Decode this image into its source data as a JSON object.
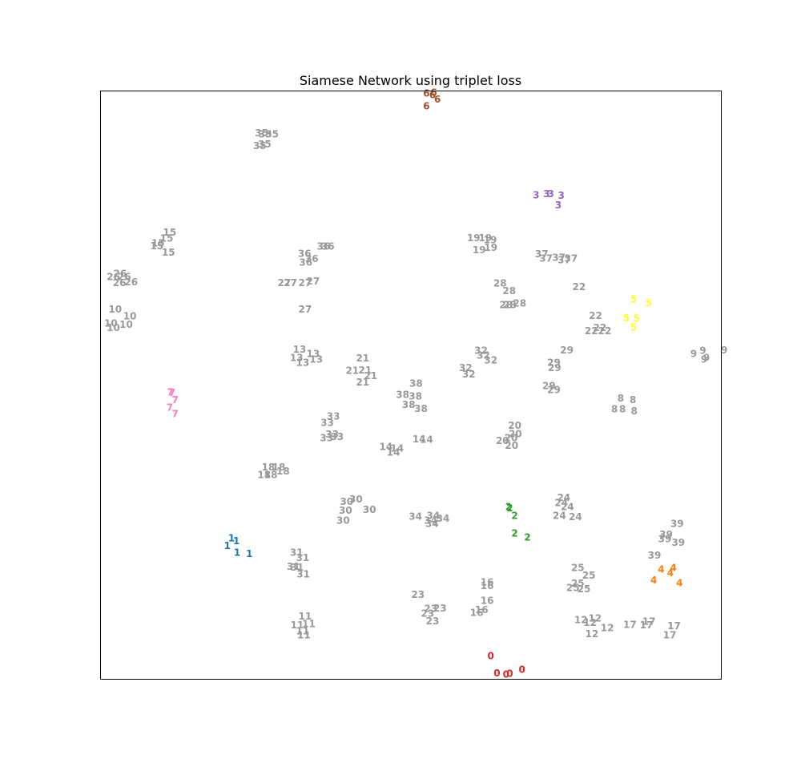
{
  "chart_data": {
    "type": "scatter",
    "title": "Siamese Network using triplet loss",
    "xlabel": "",
    "ylabel": "",
    "xlim": [
      0,
      100
    ],
    "ylim": [
      0,
      100
    ],
    "grid": false,
    "axis_ticks": false,
    "colors": {
      "0": "#d62728",
      "1": "#1f77b4",
      "2": "#2ca02c",
      "3": "#9467bd",
      "4": "#ff7f0e",
      "5": "#ffff33",
      "6": "#a0522d",
      "7": "#f781bf",
      "other": "#999999"
    },
    "points": [
      {
        "label": "0",
        "x": 63.1,
        "y": 3.6
      },
      {
        "label": "0",
        "x": 64.1,
        "y": 0.7
      },
      {
        "label": "0",
        "x": 65.6,
        "y": 0.5
      },
      {
        "label": "0",
        "x": 66.2,
        "y": 0.6
      },
      {
        "label": "0",
        "x": 68.2,
        "y": 1.3
      },
      {
        "label": "1",
        "x": 20.8,
        "y": 23.8
      },
      {
        "label": "1",
        "x": 21.6,
        "y": 23.3
      },
      {
        "label": "1",
        "x": 20.1,
        "y": 22.5
      },
      {
        "label": "1",
        "x": 21.7,
        "y": 21.3
      },
      {
        "label": "1",
        "x": 23.7,
        "y": 21.1
      },
      {
        "label": "2",
        "x": 66.0,
        "y": 29.1
      },
      {
        "label": "2",
        "x": 66.2,
        "y": 28.9
      },
      {
        "label": "2",
        "x": 67.0,
        "y": 27.6
      },
      {
        "label": "2",
        "x": 67.0,
        "y": 24.6
      },
      {
        "label": "2",
        "x": 69.1,
        "y": 23.9
      },
      {
        "label": "3",
        "x": 70.5,
        "y": 82.4
      },
      {
        "label": "3",
        "x": 72.2,
        "y": 82.6
      },
      {
        "label": "3",
        "x": 72.9,
        "y": 82.6
      },
      {
        "label": "3",
        "x": 74.6,
        "y": 82.3
      },
      {
        "label": "3",
        "x": 74.1,
        "y": 80.7
      },
      {
        "label": "4",
        "x": 90.9,
        "y": 18.4
      },
      {
        "label": "4",
        "x": 92.9,
        "y": 18.7
      },
      {
        "label": "4",
        "x": 92.4,
        "y": 17.8
      },
      {
        "label": "4",
        "x": 89.7,
        "y": 16.6
      },
      {
        "label": "4",
        "x": 93.9,
        "y": 16.1
      },
      {
        "label": "5",
        "x": 86.4,
        "y": 64.6
      },
      {
        "label": "5",
        "x": 88.9,
        "y": 63.9
      },
      {
        "label": "5",
        "x": 85.2,
        "y": 61.4
      },
      {
        "label": "5",
        "x": 86.9,
        "y": 61.3
      },
      {
        "label": "5",
        "x": 86.4,
        "y": 59.8
      },
      {
        "label": "6",
        "x": 52.6,
        "y": 99.8
      },
      {
        "label": "6",
        "x": 53.8,
        "y": 99.9
      },
      {
        "label": "6",
        "x": 53.6,
        "y": 99.5
      },
      {
        "label": "6",
        "x": 54.4,
        "y": 98.8
      },
      {
        "label": "6",
        "x": 52.6,
        "y": 97.6
      },
      {
        "label": "7",
        "x": 10.8,
        "y": 48.7
      },
      {
        "label": "7",
        "x": 11.1,
        "y": 48.6
      },
      {
        "label": "7",
        "x": 11.6,
        "y": 47.4
      },
      {
        "label": "7",
        "x": 10.7,
        "y": 46.1
      },
      {
        "label": "7",
        "x": 11.6,
        "y": 45.0
      },
      {
        "label": "8",
        "x": 84.3,
        "y": 47.7
      },
      {
        "label": "8",
        "x": 86.3,
        "y": 47.4
      },
      {
        "label": "8",
        "x": 83.3,
        "y": 45.8
      },
      {
        "label": "8",
        "x": 84.6,
        "y": 45.8
      },
      {
        "label": "8",
        "x": 86.5,
        "y": 45.5
      },
      {
        "label": "9",
        "x": 97.7,
        "y": 55.8
      },
      {
        "label": "9",
        "x": 101.2,
        "y": 55.9
      },
      {
        "label": "9",
        "x": 96.2,
        "y": 55.3
      },
      {
        "label": "9",
        "x": 98.3,
        "y": 54.6
      },
      {
        "label": "9",
        "x": 97.9,
        "y": 54.3
      },
      {
        "label": "10",
        "x": 1.8,
        "y": 62.9
      },
      {
        "label": "10",
        "x": 4.2,
        "y": 61.7
      },
      {
        "label": "10",
        "x": 1.1,
        "y": 60.5
      },
      {
        "label": "10",
        "x": 3.6,
        "y": 60.3
      },
      {
        "label": "10",
        "x": 1.5,
        "y": 59.7
      },
      {
        "label": "11",
        "x": 32.8,
        "y": 10.4
      },
      {
        "label": "11",
        "x": 31.5,
        "y": 8.9
      },
      {
        "label": "11",
        "x": 33.4,
        "y": 9.1
      },
      {
        "label": "11",
        "x": 32.4,
        "y": 7.9
      },
      {
        "label": "11",
        "x": 32.6,
        "y": 7.2
      },
      {
        "label": "12",
        "x": 77.8,
        "y": 9.8
      },
      {
        "label": "12",
        "x": 80.1,
        "y": 10.1
      },
      {
        "label": "12",
        "x": 79.3,
        "y": 9.3
      },
      {
        "label": "12",
        "x": 82.1,
        "y": 8.4
      },
      {
        "label": "12",
        "x": 79.6,
        "y": 7.4
      },
      {
        "label": "13",
        "x": 31.9,
        "y": 56.0
      },
      {
        "label": "13",
        "x": 34.1,
        "y": 55.3
      },
      {
        "label": "13",
        "x": 31.4,
        "y": 54.6
      },
      {
        "label": "13",
        "x": 34.6,
        "y": 54.3
      },
      {
        "label": "13",
        "x": 32.4,
        "y": 53.8
      },
      {
        "label": "14",
        "x": 46.0,
        "y": 39.4
      },
      {
        "label": "14",
        "x": 51.4,
        "y": 40.7
      },
      {
        "label": "14",
        "x": 52.6,
        "y": 40.6
      },
      {
        "label": "14",
        "x": 47.8,
        "y": 39.1
      },
      {
        "label": "14",
        "x": 47.2,
        "y": 38.4
      },
      {
        "label": "15",
        "x": 10.7,
        "y": 76.0
      },
      {
        "label": "15",
        "x": 10.2,
        "y": 75.0
      },
      {
        "label": "15",
        "x": 8.8,
        "y": 74.2
      },
      {
        "label": "15",
        "x": 8.6,
        "y": 73.7
      },
      {
        "label": "15",
        "x": 10.5,
        "y": 72.6
      },
      {
        "label": "16",
        "x": 62.5,
        "y": 16.2
      },
      {
        "label": "16",
        "x": 62.5,
        "y": 15.6
      },
      {
        "label": "16",
        "x": 62.5,
        "y": 13.1
      },
      {
        "label": "16",
        "x": 61.6,
        "y": 11.5
      },
      {
        "label": "16",
        "x": 60.8,
        "y": 11.0
      },
      {
        "label": "17",
        "x": 88.9,
        "y": 9.5
      },
      {
        "label": "17",
        "x": 85.8,
        "y": 9.0
      },
      {
        "label": "17",
        "x": 88.5,
        "y": 8.9
      },
      {
        "label": "17",
        "x": 93.0,
        "y": 8.8
      },
      {
        "label": "17",
        "x": 92.3,
        "y": 7.2
      },
      {
        "label": "18",
        "x": 26.8,
        "y": 35.9
      },
      {
        "label": "18",
        "x": 28.5,
        "y": 35.9
      },
      {
        "label": "18",
        "x": 29.2,
        "y": 35.2
      },
      {
        "label": "18",
        "x": 26.1,
        "y": 34.6
      },
      {
        "label": "18",
        "x": 27.2,
        "y": 34.6
      },
      {
        "label": "19",
        "x": 60.3,
        "y": 75.1
      },
      {
        "label": "19",
        "x": 62.2,
        "y": 75.1
      },
      {
        "label": "19",
        "x": 63.0,
        "y": 74.7
      },
      {
        "label": "19",
        "x": 61.2,
        "y": 73.0
      },
      {
        "label": "19",
        "x": 63.1,
        "y": 73.4
      },
      {
        "label": "20",
        "x": 67.0,
        "y": 43.0
      },
      {
        "label": "20",
        "x": 67.1,
        "y": 41.6
      },
      {
        "label": "20",
        "x": 65.0,
        "y": 40.4
      },
      {
        "label": "20",
        "x": 66.4,
        "y": 40.9
      },
      {
        "label": "20",
        "x": 66.5,
        "y": 39.6
      },
      {
        "label": "21",
        "x": 42.2,
        "y": 54.5
      },
      {
        "label": "21",
        "x": 40.5,
        "y": 52.4
      },
      {
        "label": "21",
        "x": 42.6,
        "y": 52.5
      },
      {
        "label": "21",
        "x": 43.5,
        "y": 51.5
      },
      {
        "label": "21",
        "x": 42.2,
        "y": 50.4
      },
      {
        "label": "22",
        "x": 77.5,
        "y": 66.7
      },
      {
        "label": "22",
        "x": 80.2,
        "y": 61.8
      },
      {
        "label": "22",
        "x": 80.9,
        "y": 59.7
      },
      {
        "label": "22",
        "x": 79.5,
        "y": 59.2
      },
      {
        "label": "22",
        "x": 81.7,
        "y": 59.2
      },
      {
        "label": "23",
        "x": 51.2,
        "y": 14.1
      },
      {
        "label": "23",
        "x": 53.3,
        "y": 11.7
      },
      {
        "label": "23",
        "x": 54.8,
        "y": 11.8
      },
      {
        "label": "23",
        "x": 52.8,
        "y": 10.9
      },
      {
        "label": "23",
        "x": 53.6,
        "y": 9.6
      },
      {
        "label": "24",
        "x": 75.0,
        "y": 30.7
      },
      {
        "label": "24",
        "x": 74.6,
        "y": 29.8
      },
      {
        "label": "24",
        "x": 75.6,
        "y": 29.1
      },
      {
        "label": "24",
        "x": 74.3,
        "y": 27.6
      },
      {
        "label": "24",
        "x": 76.9,
        "y": 27.4
      },
      {
        "label": "25",
        "x": 77.3,
        "y": 18.7
      },
      {
        "label": "25",
        "x": 79.1,
        "y": 17.4
      },
      {
        "label": "25",
        "x": 77.3,
        "y": 16.0
      },
      {
        "label": "25",
        "x": 76.5,
        "y": 15.3
      },
      {
        "label": "25",
        "x": 78.3,
        "y": 15.1
      },
      {
        "label": "26",
        "x": 2.6,
        "y": 69.0
      },
      {
        "label": "26",
        "x": 1.5,
        "y": 68.4
      },
      {
        "label": "26",
        "x": 3.3,
        "y": 68.4
      },
      {
        "label": "26",
        "x": 2.5,
        "y": 67.4
      },
      {
        "label": "26",
        "x": 4.4,
        "y": 67.5
      },
      {
        "label": "27",
        "x": 29.4,
        "y": 67.4
      },
      {
        "label": "27",
        "x": 30.4,
        "y": 67.4
      },
      {
        "label": "27",
        "x": 32.8,
        "y": 67.4
      },
      {
        "label": "27",
        "x": 34.1,
        "y": 67.7
      },
      {
        "label": "27",
        "x": 32.8,
        "y": 62.9
      },
      {
        "label": "28",
        "x": 64.6,
        "y": 67.3
      },
      {
        "label": "28",
        "x": 66.1,
        "y": 66.0
      },
      {
        "label": "28",
        "x": 65.6,
        "y": 63.6
      },
      {
        "label": "28",
        "x": 66.2,
        "y": 63.6
      },
      {
        "label": "28",
        "x": 67.8,
        "y": 63.9
      },
      {
        "label": "29",
        "x": 75.5,
        "y": 55.9
      },
      {
        "label": "29",
        "x": 73.4,
        "y": 53.8
      },
      {
        "label": "29",
        "x": 73.5,
        "y": 52.9
      },
      {
        "label": "29",
        "x": 72.6,
        "y": 49.8
      },
      {
        "label": "29",
        "x": 73.4,
        "y": 49.1
      },
      {
        "label": "30",
        "x": 39.6,
        "y": 30.0
      },
      {
        "label": "30",
        "x": 41.1,
        "y": 30.4
      },
      {
        "label": "30",
        "x": 39.4,
        "y": 28.5
      },
      {
        "label": "30",
        "x": 43.3,
        "y": 28.6
      },
      {
        "label": "30",
        "x": 39.0,
        "y": 26.8
      },
      {
        "label": "31",
        "x": 31.4,
        "y": 21.3
      },
      {
        "label": "31",
        "x": 32.4,
        "y": 20.4
      },
      {
        "label": "31",
        "x": 30.9,
        "y": 18.9
      },
      {
        "label": "31",
        "x": 31.5,
        "y": 18.8
      },
      {
        "label": "31",
        "x": 32.5,
        "y": 17.6
      },
      {
        "label": "32",
        "x": 61.5,
        "y": 55.8
      },
      {
        "label": "32",
        "x": 61.9,
        "y": 55.0
      },
      {
        "label": "32",
        "x": 63.1,
        "y": 54.2
      },
      {
        "label": "32",
        "x": 59.0,
        "y": 52.9
      },
      {
        "label": "32",
        "x": 59.5,
        "y": 51.8
      },
      {
        "label": "33",
        "x": 37.4,
        "y": 44.6
      },
      {
        "label": "33",
        "x": 36.4,
        "y": 43.5
      },
      {
        "label": "33",
        "x": 37.2,
        "y": 41.5
      },
      {
        "label": "33",
        "x": 36.3,
        "y": 40.9
      },
      {
        "label": "33",
        "x": 38.0,
        "y": 41.1
      },
      {
        "label": "34",
        "x": 50.8,
        "y": 27.5
      },
      {
        "label": "34",
        "x": 53.7,
        "y": 27.6
      },
      {
        "label": "34",
        "x": 53.3,
        "y": 26.8
      },
      {
        "label": "34",
        "x": 55.3,
        "y": 27.1
      },
      {
        "label": "34",
        "x": 53.5,
        "y": 26.2
      },
      {
        "label": "35",
        "x": 25.7,
        "y": 93.0
      },
      {
        "label": "35",
        "x": 26.3,
        "y": 92.8
      },
      {
        "label": "35",
        "x": 27.4,
        "y": 92.8
      },
      {
        "label": "35",
        "x": 26.2,
        "y": 91.1
      },
      {
        "label": "35",
        "x": 25.4,
        "y": 90.8
      },
      {
        "label": "36",
        "x": 32.7,
        "y": 72.4
      },
      {
        "label": "36",
        "x": 35.8,
        "y": 73.6
      },
      {
        "label": "36",
        "x": 36.5,
        "y": 73.6
      },
      {
        "label": "36",
        "x": 33.9,
        "y": 71.5
      },
      {
        "label": "36",
        "x": 32.9,
        "y": 70.9
      },
      {
        "label": "37",
        "x": 71.4,
        "y": 72.3
      },
      {
        "label": "37",
        "x": 72.1,
        "y": 71.6
      },
      {
        "label": "37",
        "x": 74.2,
        "y": 71.7
      },
      {
        "label": "37",
        "x": 75.1,
        "y": 71.3
      },
      {
        "label": "37",
        "x": 76.2,
        "y": 71.6
      },
      {
        "label": "38",
        "x": 50.9,
        "y": 50.2
      },
      {
        "label": "38",
        "x": 48.7,
        "y": 48.3
      },
      {
        "label": "38",
        "x": 50.8,
        "y": 48.0
      },
      {
        "label": "38",
        "x": 49.7,
        "y": 46.6
      },
      {
        "label": "38",
        "x": 51.7,
        "y": 45.9
      },
      {
        "label": "39",
        "x": 93.5,
        "y": 26.2
      },
      {
        "label": "39",
        "x": 91.7,
        "y": 24.4
      },
      {
        "label": "39",
        "x": 91.5,
        "y": 23.6
      },
      {
        "label": "39",
        "x": 93.7,
        "y": 23.0
      },
      {
        "label": "39",
        "x": 89.8,
        "y": 20.8
      }
    ]
  }
}
